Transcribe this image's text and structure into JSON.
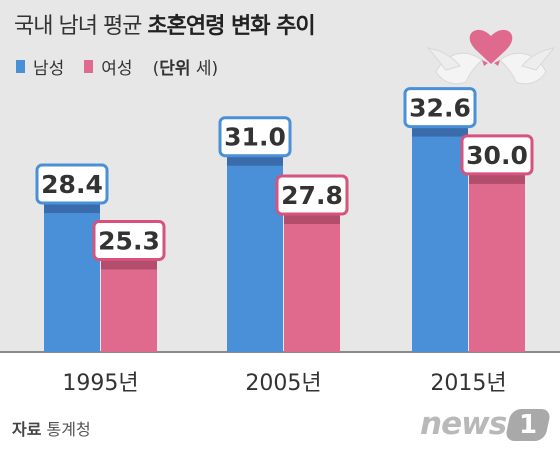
{
  "title": {
    "normal": "국내 남녀 평균 ",
    "bold": "초혼연령 변화 추이"
  },
  "legend": {
    "items": [
      {
        "label": "남성",
        "color": "#4a90d9"
      },
      {
        "label": "여성",
        "color": "#e06a8e"
      }
    ],
    "unit_prefix": "(",
    "unit_bold": "단위",
    "unit_value": " 세)"
  },
  "source": {
    "label": "자료",
    "value": " 통계청"
  },
  "logo": {
    "word": "news",
    "badge": "1"
  },
  "chart_data": {
    "type": "bar",
    "categories": [
      "1995년",
      "2005년",
      "2015년"
    ],
    "series": [
      {
        "name": "남성",
        "values": [
          28.4,
          31.0,
          32.6
        ],
        "color": "#4a90d9",
        "cap": "#3a6bab",
        "border": "#4a90d9"
      },
      {
        "name": "여성",
        "values": [
          25.3,
          27.8,
          30.0
        ],
        "color": "#e06a8e",
        "cap": "#b34d6c",
        "border": "#d7537d"
      }
    ],
    "ylim": [
      20,
      33.4
    ],
    "decimals": 1
  }
}
